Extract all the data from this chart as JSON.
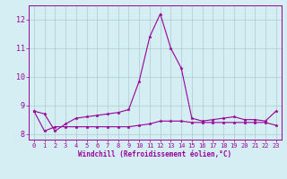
{
  "xlabel": "Windchill (Refroidissement éolien,°C)",
  "x": [
    0,
    1,
    2,
    3,
    4,
    5,
    6,
    7,
    8,
    9,
    10,
    11,
    12,
    13,
    14,
    15,
    16,
    17,
    18,
    19,
    20,
    21,
    22,
    23
  ],
  "line1": [
    8.8,
    8.7,
    8.1,
    8.35,
    8.55,
    8.6,
    8.65,
    8.7,
    8.75,
    8.85,
    9.85,
    11.4,
    12.2,
    11.0,
    10.3,
    8.55,
    8.45,
    8.5,
    8.55,
    8.6,
    8.5,
    8.5,
    8.45,
    8.8
  ],
  "line2": [
    8.8,
    8.1,
    8.25,
    8.25,
    8.25,
    8.25,
    8.25,
    8.25,
    8.25,
    8.25,
    8.3,
    8.35,
    8.45,
    8.45,
    8.45,
    8.4,
    8.4,
    8.4,
    8.4,
    8.4,
    8.4,
    8.4,
    8.4,
    8.3
  ],
  "line_color": "#990099",
  "bg_color": "#d4eef4",
  "grid_color": "#aacccc",
  "ylim": [
    7.8,
    12.5
  ],
  "yticks": [
    8,
    9,
    10,
    11,
    12
  ],
  "xtick_labels": [
    "0",
    "1",
    "2",
    "3",
    "4",
    "5",
    "6",
    "7",
    "8",
    "9",
    "10",
    "11",
    "12",
    "13",
    "14",
    "15",
    "16",
    "17",
    "18",
    "19",
    "20",
    "21",
    "22",
    "23"
  ]
}
